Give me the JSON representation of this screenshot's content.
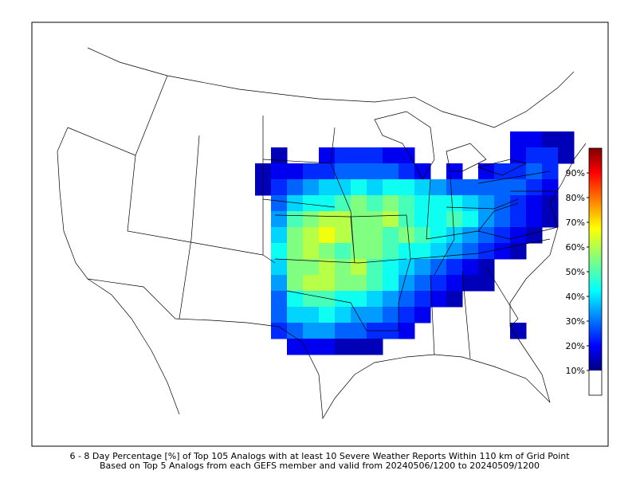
{
  "caption": {
    "line1": "6 - 8 Day Percentage [%] of Top 105 Analogs with at least 10 Severe Weather Reports Within 110 km of Grid Point",
    "line2": "Based on Top 5 Analogs from each GEFS member and valid from 20240506/1200 to 20240509/1200"
  },
  "chart_data": {
    "type": "heatmap",
    "colormap": "jet",
    "values": [
      [
        null,
        null,
        null,
        null,
        null,
        null,
        null,
        null,
        null,
        null,
        null,
        null,
        null,
        null,
        null,
        null,
        20,
        20,
        15,
        15
      ],
      [
        null,
        15,
        null,
        null,
        20,
        25,
        25,
        25,
        20,
        20,
        null,
        null,
        null,
        null,
        null,
        null,
        20,
        25,
        25,
        15
      ],
      [
        15,
        20,
        20,
        25,
        25,
        30,
        30,
        30,
        30,
        25,
        20,
        null,
        20,
        null,
        20,
        25,
        25,
        30,
        25,
        null
      ],
      [
        15,
        25,
        30,
        35,
        40,
        40,
        45,
        40,
        45,
        45,
        40,
        35,
        30,
        30,
        30,
        30,
        30,
        25,
        20,
        null
      ],
      [
        null,
        30,
        40,
        45,
        45,
        50,
        55,
        50,
        55,
        50,
        45,
        45,
        45,
        40,
        35,
        30,
        25,
        20,
        15,
        null
      ],
      [
        null,
        35,
        50,
        55,
        60,
        60,
        55,
        55,
        60,
        50,
        45,
        45,
        50,
        45,
        35,
        30,
        25,
        20,
        15,
        null
      ],
      [
        null,
        40,
        55,
        60,
        65,
        60,
        55,
        55,
        50,
        55,
        50,
        45,
        40,
        35,
        30,
        25,
        20,
        15,
        null,
        null
      ],
      [
        null,
        45,
        55,
        60,
        55,
        50,
        55,
        55,
        50,
        45,
        45,
        40,
        35,
        30,
        25,
        20,
        15,
        null,
        null,
        null
      ],
      [
        null,
        40,
        55,
        55,
        60,
        55,
        60,
        50,
        45,
        40,
        35,
        30,
        25,
        20,
        15,
        null,
        null,
        null,
        null,
        null
      ],
      [
        null,
        35,
        55,
        60,
        60,
        55,
        55,
        50,
        45,
        35,
        30,
        25,
        20,
        15,
        15,
        null,
        null,
        null,
        null,
        null
      ],
      [
        null,
        30,
        45,
        50,
        50,
        45,
        45,
        40,
        35,
        30,
        25,
        20,
        15,
        null,
        null,
        null,
        null,
        null,
        null,
        null
      ],
      [
        null,
        30,
        40,
        40,
        45,
        40,
        35,
        35,
        30,
        25,
        20,
        null,
        null,
        null,
        null,
        null,
        null,
        null,
        null,
        null
      ],
      [
        null,
        25,
        30,
        35,
        35,
        30,
        30,
        25,
        25,
        20,
        null,
        null,
        null,
        null,
        null,
        null,
        15,
        null,
        null,
        null
      ],
      [
        null,
        null,
        20,
        20,
        20,
        15,
        15,
        15,
        null,
        null,
        null,
        null,
        null,
        null,
        null,
        null,
        null,
        null,
        null,
        null
      ]
    ],
    "colorbar": {
      "lim": [
        0,
        100
      ],
      "ticks": [
        {
          "value": 10,
          "label": "10%"
        },
        {
          "value": 20,
          "label": "20%"
        },
        {
          "value": 30,
          "label": "30%"
        },
        {
          "value": 40,
          "label": "40%"
        },
        {
          "value": 50,
          "label": "50%"
        },
        {
          "value": 60,
          "label": "60%"
        },
        {
          "value": 70,
          "label": "70%"
        },
        {
          "value": 80,
          "label": "80%"
        },
        {
          "value": 90,
          "label": "90%"
        }
      ]
    }
  }
}
